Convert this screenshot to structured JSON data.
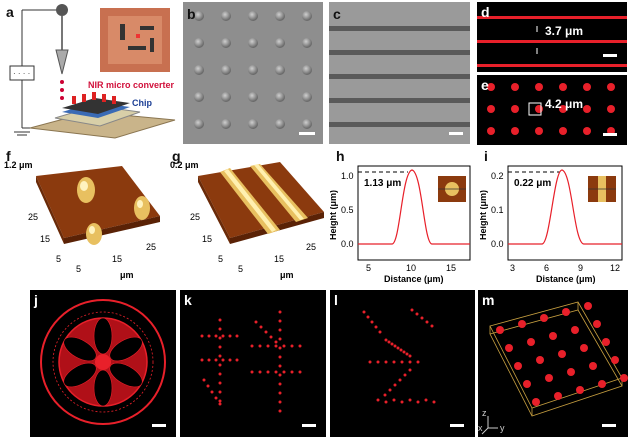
{
  "panels": {
    "a": {
      "label": "a",
      "text_converter": "NIR micro converter",
      "text_chip": "Chip"
    },
    "b": {
      "label": "b"
    },
    "c": {
      "label": "c"
    },
    "d": {
      "label": "d",
      "measure": "3.7 μm"
    },
    "e": {
      "label": "e",
      "measure": "4.2 μm"
    },
    "f": {
      "label": "f",
      "zmax": "1.2 μm",
      "ticks_left": [
        "25",
        "15",
        "5"
      ],
      "ticks_bottom": [
        "5",
        "15",
        "25"
      ],
      "unit": "μm"
    },
    "g": {
      "label": "g",
      "zmax": "0.2 μm",
      "ticks_left": [
        "25",
        "15",
        "5"
      ],
      "ticks_bottom": [
        "5",
        "15",
        "25"
      ],
      "unit": "μm"
    },
    "h": {
      "label": "h",
      "ylabel": "Height (μm)",
      "xlabel": "Distance (μm)",
      "annotation": "1.13 μm",
      "yticks": [
        "0.0",
        "0.5",
        "1.0"
      ],
      "xticks": [
        "5",
        "10",
        "15"
      ]
    },
    "i": {
      "label": "i",
      "ylabel": "Height (μm)",
      "xlabel": "Distance (μm)",
      "annotation": "0.22 μm",
      "yticks": [
        "0.0",
        "0.1",
        "0.2"
      ],
      "xticks": [
        "3",
        "6",
        "9",
        "12"
      ]
    },
    "j": {
      "label": "j"
    },
    "k": {
      "label": "k"
    },
    "l": {
      "label": "l"
    },
    "m": {
      "label": "m",
      "axes": [
        "z",
        "x",
        "y"
      ]
    }
  },
  "colors": {
    "red": "#e8202a",
    "sem_gray": "#8a8a8a",
    "afm_brown": "#8b3a0e"
  }
}
